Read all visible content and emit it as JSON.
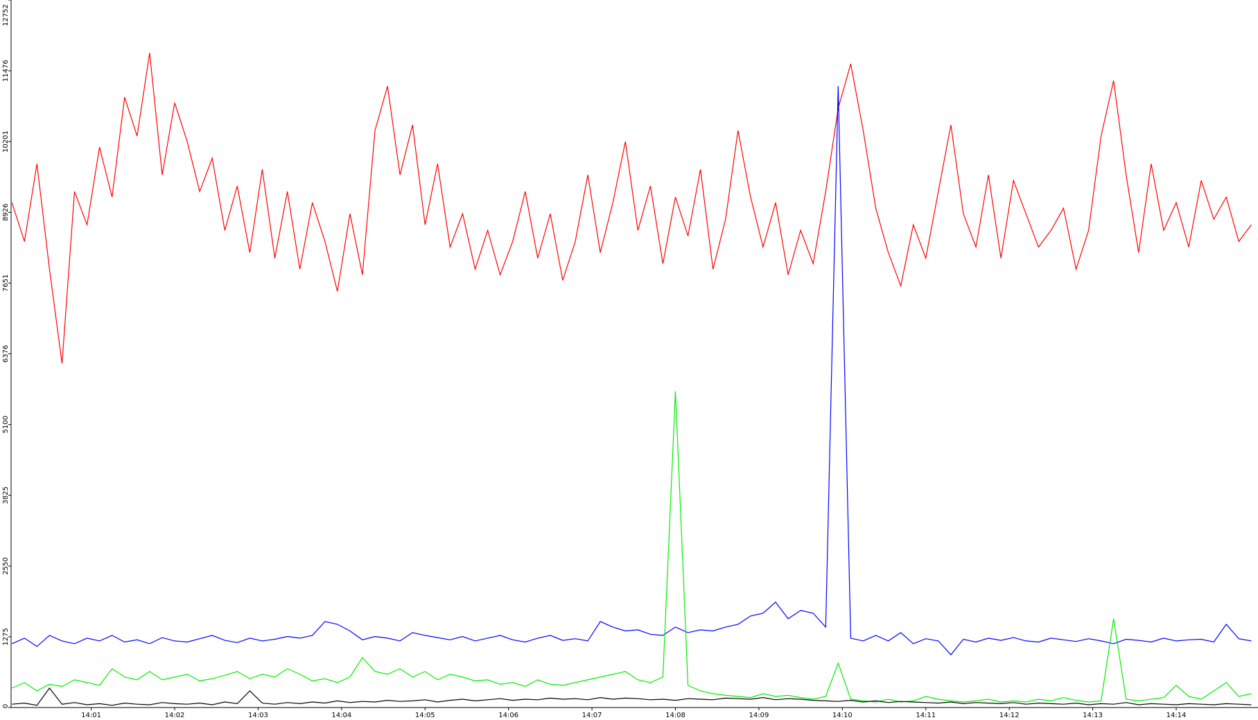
{
  "chart_data": {
    "type": "line",
    "x": [
      0.05,
      0.2,
      0.35,
      0.5,
      0.65,
      0.8,
      0.95,
      1.1,
      1.25,
      1.4,
      1.55,
      1.7,
      1.85,
      2.0,
      2.15,
      2.3,
      2.45,
      2.6,
      2.75,
      2.9,
      3.05,
      3.2,
      3.35,
      3.5,
      3.65,
      3.8,
      3.95,
      4.1,
      4.25,
      4.4,
      4.55,
      4.7,
      4.85,
      5.0,
      5.15,
      5.3,
      5.45,
      5.6,
      5.75,
      5.9,
      6.05,
      6.2,
      6.35,
      6.5,
      6.65,
      6.8,
      6.95,
      7.1,
      7.25,
      7.4,
      7.55,
      7.7,
      7.85,
      8.0,
      8.15,
      8.3,
      8.45,
      8.6,
      8.75,
      8.9,
      9.05,
      9.2,
      9.35,
      9.5,
      9.65,
      9.8,
      9.95,
      10.1,
      10.25,
      10.4,
      10.55,
      10.7,
      10.85,
      11.0,
      11.15,
      11.3,
      11.45,
      11.6,
      11.75,
      11.9,
      12.05,
      12.2,
      12.35,
      12.5,
      12.65,
      12.8,
      12.95,
      13.1,
      13.25,
      13.4,
      13.55,
      13.7,
      13.85,
      14.0,
      14.15,
      14.3,
      14.45,
      14.6,
      14.75,
      14.9
    ],
    "series": [
      {
        "color": "#ff0000",
        "values": [
          9100,
          8400,
          9800,
          7900,
          6200,
          9300,
          8700,
          10100,
          9200,
          11000,
          10300,
          11800,
          9600,
          10900,
          10200,
          9300,
          9900,
          8600,
          9400,
          8200,
          9700,
          8100,
          9300,
          7900,
          9100,
          8400,
          7500,
          8900,
          7800,
          10400,
          11200,
          9600,
          10500,
          8700,
          9800,
          8300,
          8900,
          7900,
          8600,
          7800,
          8400,
          9300,
          8100,
          8900,
          7700,
          8400,
          9600,
          8200,
          9100,
          10200,
          8600,
          9400,
          8000,
          9200,
          8500,
          9700,
          7900,
          8800,
          10400,
          9200,
          8300,
          9100,
          7800,
          8600,
          8000,
          9300,
          10800,
          11600,
          10400,
          9000,
          8200,
          7600,
          8700,
          8100,
          9300,
          10500,
          8900,
          8300,
          9600,
          8100,
          9500,
          8900,
          8300,
          8600,
          9000,
          7900,
          8600,
          10300,
          11300,
          9600,
          8200,
          9800,
          8600,
          9100,
          8300,
          9500,
          8800,
          9200,
          8400,
          8700
        ]
      },
      {
        "color": "#0000ff",
        "values": [
          1150,
          1250,
          1100,
          1300,
          1200,
          1150,
          1250,
          1200,
          1300,
          1180,
          1220,
          1150,
          1260,
          1200,
          1180,
          1240,
          1300,
          1210,
          1170,
          1250,
          1200,
          1230,
          1280,
          1250,
          1300,
          1550,
          1500,
          1380,
          1220,
          1280,
          1250,
          1200,
          1350,
          1300,
          1260,
          1220,
          1280,
          1200,
          1250,
          1300,
          1220,
          1180,
          1250,
          1300,
          1210,
          1240,
          1200,
          1550,
          1450,
          1380,
          1400,
          1320,
          1300,
          1450,
          1350,
          1400,
          1380,
          1450,
          1500,
          1650,
          1700,
          1900,
          1600,
          1750,
          1700,
          1450,
          11200,
          1250,
          1200,
          1300,
          1200,
          1350,
          1150,
          1240,
          1200,
          950,
          1230,
          1180,
          1250,
          1210,
          1260,
          1200,
          1180,
          1250,
          1220,
          1190,
          1240,
          1200,
          1150,
          1230,
          1210,
          1180,
          1250,
          1200,
          1220,
          1230,
          1180,
          1500,
          1240,
          1200
        ]
      },
      {
        "color": "#00ee00",
        "values": [
          350,
          450,
          300,
          420,
          380,
          500,
          450,
          400,
          700,
          550,
          500,
          650,
          500,
          550,
          600,
          480,
          520,
          580,
          650,
          520,
          600,
          550,
          700,
          600,
          480,
          520,
          450,
          550,
          900,
          650,
          600,
          700,
          550,
          650,
          500,
          600,
          550,
          480,
          500,
          420,
          450,
          380,
          500,
          420,
          400,
          450,
          500,
          550,
          600,
          650,
          500,
          450,
          550,
          5700,
          400,
          300,
          250,
          220,
          200,
          180,
          250,
          200,
          220,
          180,
          150,
          200,
          800,
          150,
          120,
          100,
          150,
          100,
          120,
          200,
          150,
          120,
          100,
          120,
          150,
          100,
          120,
          100,
          150,
          120,
          180,
          130,
          100,
          120,
          1600,
          150,
          120,
          150,
          180,
          400,
          200,
          150,
          300,
          450,
          200,
          250
        ]
      },
      {
        "color": "#000000",
        "values": [
          60,
          80,
          40,
          350,
          60,
          90,
          50,
          70,
          40,
          80,
          60,
          50,
          90,
          70,
          60,
          80,
          50,
          100,
          70,
          300,
          80,
          60,
          90,
          70,
          100,
          80,
          120,
          90,
          110,
          100,
          130,
          110,
          120,
          140,
          100,
          130,
          150,
          120,
          140,
          160,
          130,
          150,
          140,
          170,
          150,
          160,
          140,
          180,
          150,
          170,
          160,
          140,
          150,
          130,
          160,
          150,
          140,
          170,
          160,
          150,
          180,
          140,
          160,
          150,
          130,
          120,
          110,
          130,
          100,
          120,
          90,
          110,
          100,
          90,
          80,
          100,
          70,
          90,
          80,
          70,
          90,
          60,
          80,
          70,
          60,
          80,
          50,
          70,
          60,
          90,
          50,
          70,
          60,
          50,
          70,
          60,
          50,
          70,
          60,
          50
        ]
      }
    ],
    "xlim": [
      0.04,
      14.98
    ],
    "xticks": [
      {
        "value": 1,
        "label": "14:01"
      },
      {
        "value": 2,
        "label": "14:02"
      },
      {
        "value": 3,
        "label": "14:03"
      },
      {
        "value": 4,
        "label": "14:04"
      },
      {
        "value": 5,
        "label": "14:05"
      },
      {
        "value": 6,
        "label": "14:06"
      },
      {
        "value": 7,
        "label": "14:07"
      },
      {
        "value": 8,
        "label": "14:08"
      },
      {
        "value": 9,
        "label": "14:09"
      },
      {
        "value": 10,
        "label": "14:10"
      },
      {
        "value": 11,
        "label": "14:11"
      },
      {
        "value": 12,
        "label": "14:12"
      },
      {
        "value": 13,
        "label": "14:13"
      },
      {
        "value": 14,
        "label": "14:14"
      }
    ],
    "ylim": [
      0,
      12752
    ],
    "yticks": [
      0,
      1275,
      2550,
      3825,
      5100,
      6376,
      7651,
      8926,
      10201,
      11476,
      12752
    ]
  }
}
